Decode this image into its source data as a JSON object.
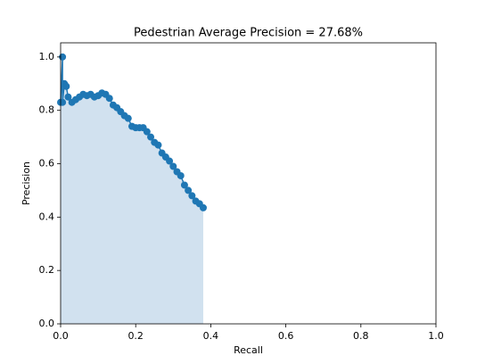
{
  "chart_data": {
    "type": "area",
    "title": "Pedestrian Average Precision  = 27.68%",
    "xlabel": "Recall",
    "ylabel": "Precision",
    "x": [
      0.0,
      0.005,
      0.005,
      0.01,
      0.015,
      0.02,
      0.03,
      0.04,
      0.05,
      0.06,
      0.07,
      0.08,
      0.09,
      0.1,
      0.11,
      0.12,
      0.13,
      0.14,
      0.15,
      0.16,
      0.17,
      0.18,
      0.19,
      0.2,
      0.21,
      0.22,
      0.23,
      0.24,
      0.25,
      0.26,
      0.27,
      0.28,
      0.29,
      0.3,
      0.31,
      0.32,
      0.33,
      0.34,
      0.35,
      0.36,
      0.37,
      0.38
    ],
    "values": [
      0.83,
      1.0,
      0.83,
      0.9,
      0.89,
      0.85,
      0.83,
      0.84,
      0.85,
      0.86,
      0.855,
      0.86,
      0.85,
      0.855,
      0.865,
      0.86,
      0.845,
      0.82,
      0.81,
      0.795,
      0.78,
      0.77,
      0.74,
      0.735,
      0.735,
      0.735,
      0.72,
      0.7,
      0.68,
      0.67,
      0.64,
      0.625,
      0.61,
      0.59,
      0.57,
      0.555,
      0.52,
      0.5,
      0.48,
      0.46,
      0.45,
      0.435
    ],
    "color": "#1f77b4",
    "fill_color": "#d1e1ef",
    "xlim": [
      0,
      1
    ],
    "ylim": [
      0,
      1.053
    ],
    "xticks": [
      {
        "value": 0,
        "label": "0.0"
      },
      0.2,
      0.4,
      0.6,
      0.8,
      {
        "value": 1,
        "label": "1.0"
      }
    ],
    "yticks": [
      {
        "value": 0,
        "label": "0.0"
      },
      0.2,
      0.4,
      0.6,
      0.8,
      {
        "value": 1,
        "label": "1.0"
      }
    ]
  }
}
